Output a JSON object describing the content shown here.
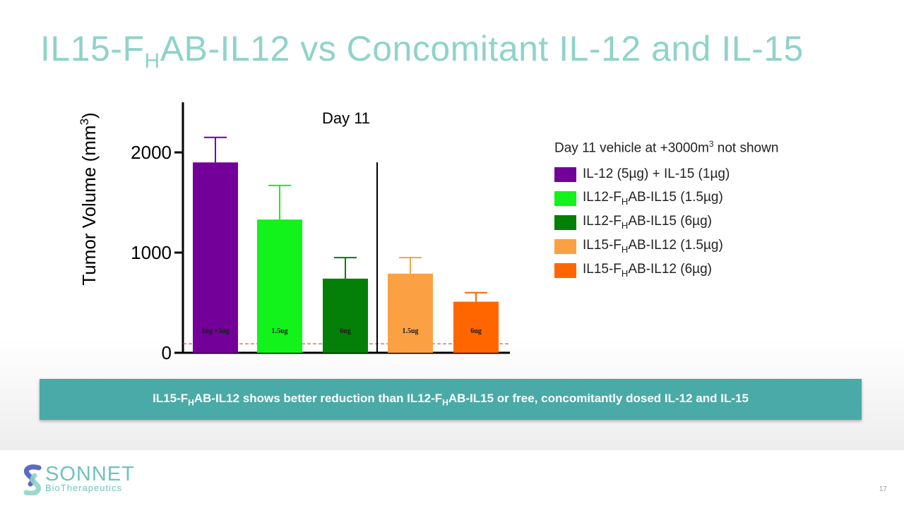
{
  "slide": {
    "title_parts": [
      "IL15-F",
      "H",
      "AB-IL12 vs Concomitant IL-12 and IL-15"
    ],
    "banner_parts": [
      "IL15-F",
      "H",
      "AB-IL12 shows better reduction than IL12-F",
      "H",
      "AB-IL15 or free, concomitantly dosed IL-12 and IL-15"
    ],
    "page_number": "17",
    "logo": {
      "word": "SONNET",
      "sub": "BioTherapeutics",
      "icon": "sonnet-s-logo-icon"
    }
  },
  "legend": {
    "note_prefix": "Day 11 vehicle at +3000m",
    "note_sup": "3",
    "note_suffix": " not shown",
    "items": [
      {
        "parts": [
          "IL-12 (5µg) + IL-15 (1µg)"
        ],
        "color": "#720099"
      },
      {
        "parts": [
          "IL12-F",
          "H",
          "AB-IL15 (1.5µg)"
        ],
        "color": "#11f31a"
      },
      {
        "parts": [
          "IL12-F",
          "H",
          "AB-IL15 (6µg)"
        ],
        "color": "#047f07"
      },
      {
        "parts": [
          "IL15-F",
          "H",
          "AB-IL12 (1.5µg)"
        ],
        "color": "#fba143"
      },
      {
        "parts": [
          "IL15-F",
          "H",
          "AB-IL12 (6µg)"
        ],
        "color": "#ff6600"
      }
    ]
  },
  "chart_data": {
    "type": "bar",
    "title": "Day 11",
    "ylabel_prefix": "Tumor Volume (mm",
    "ylabel_sup": "3",
    "ylabel_suffix": ")",
    "ylim": [
      0,
      2500
    ],
    "yticks": [
      0,
      1000,
      2000
    ],
    "ytick_labels": [
      "0",
      "1000",
      "2000"
    ],
    "categories": [
      "1ug +5ug",
      "1.5ug",
      "6ug",
      "1.5ug",
      "6ug"
    ],
    "values": [
      1900,
      1330,
      740,
      790,
      510
    ],
    "errors": [
      250,
      340,
      210,
      160,
      90
    ],
    "colors": [
      "#720099",
      "#11f31a",
      "#047f07",
      "#fba143",
      "#ff6600"
    ],
    "reference_line": 90,
    "separator_after_index": 2,
    "grid": false,
    "legend_position": "right"
  }
}
